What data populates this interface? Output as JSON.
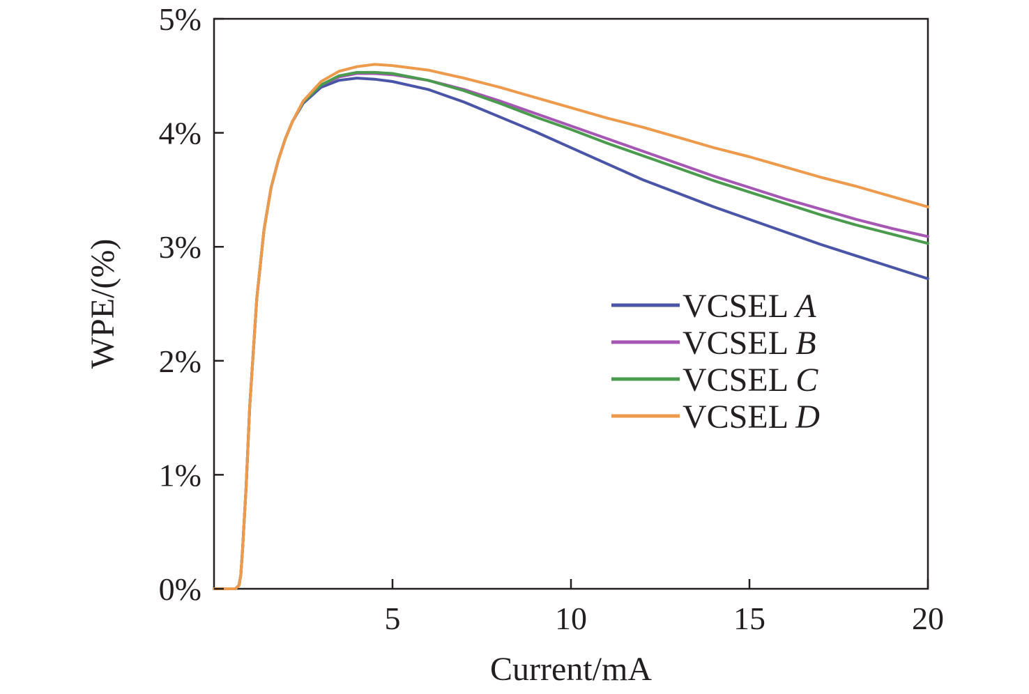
{
  "chart_data": {
    "type": "line",
    "title": "",
    "xlabel": "Current/mA",
    "ylabel": "WPE/(%)",
    "xlim": [
      0,
      20
    ],
    "ylim": [
      0,
      5
    ],
    "xticks": [
      5,
      10,
      15,
      20
    ],
    "xtick_labels": [
      "5",
      "10",
      "15",
      "20"
    ],
    "yticks": [
      0,
      1,
      2,
      3,
      4,
      5
    ],
    "ytick_labels": [
      "0%",
      "1%",
      "2%",
      "3%",
      "4%",
      "5%"
    ],
    "grid": false,
    "legend_position": "center-right",
    "series": [
      {
        "name": "VCSEL A",
        "name_prefix": "VCSEL ",
        "name_suffix": "A",
        "color": "#4a55a8",
        "x": [
          0,
          0.6,
          0.7,
          0.75,
          0.8,
          0.9,
          1.0,
          1.2,
          1.4,
          1.6,
          1.8,
          2.0,
          2.2,
          2.5,
          3.0,
          3.5,
          4.0,
          4.5,
          5.0,
          6.0,
          7.0,
          8.0,
          9.0,
          10.0,
          11.0,
          12.0,
          13.0,
          14.0,
          15.0,
          16.0,
          17.0,
          18.0,
          19.0,
          20.0
        ],
        "y": [
          0,
          0,
          0.03,
          0.12,
          0.35,
          0.9,
          1.6,
          2.55,
          3.15,
          3.52,
          3.76,
          3.95,
          4.1,
          4.26,
          4.4,
          4.46,
          4.48,
          4.47,
          4.45,
          4.38,
          4.27,
          4.14,
          4.01,
          3.87,
          3.73,
          3.59,
          3.47,
          3.35,
          3.24,
          3.13,
          3.02,
          2.92,
          2.82,
          2.72
        ]
      },
      {
        "name": "VCSEL B",
        "name_prefix": "VCSEL ",
        "name_suffix": "B",
        "color": "#a656b3",
        "x": [
          0,
          0.6,
          0.7,
          0.75,
          0.8,
          0.9,
          1.0,
          1.2,
          1.4,
          1.6,
          1.8,
          2.0,
          2.2,
          2.5,
          3.0,
          3.5,
          4.0,
          4.5,
          5.0,
          6.0,
          7.0,
          8.0,
          9.0,
          10.0,
          11.0,
          12.0,
          13.0,
          14.0,
          15.0,
          16.0,
          17.0,
          18.0,
          19.0,
          20.0
        ],
        "y": [
          0,
          0,
          0.03,
          0.12,
          0.35,
          0.9,
          1.6,
          2.55,
          3.15,
          3.52,
          3.76,
          3.95,
          4.1,
          4.27,
          4.42,
          4.49,
          4.52,
          4.52,
          4.51,
          4.46,
          4.38,
          4.28,
          4.17,
          4.06,
          3.95,
          3.84,
          3.73,
          3.62,
          3.52,
          3.42,
          3.33,
          3.24,
          3.16,
          3.09
        ]
      },
      {
        "name": "VCSEL C",
        "name_prefix": "VCSEL ",
        "name_suffix": "C",
        "color": "#4b9b4f",
        "x": [
          0,
          0.6,
          0.7,
          0.75,
          0.8,
          0.9,
          1.0,
          1.2,
          1.4,
          1.6,
          1.8,
          2.0,
          2.2,
          2.5,
          3.0,
          3.5,
          4.0,
          4.5,
          5.0,
          6.0,
          7.0,
          8.0,
          9.0,
          10.0,
          11.0,
          12.0,
          13.0,
          14.0,
          15.0,
          16.0,
          17.0,
          18.0,
          19.0,
          20.0
        ],
        "y": [
          0,
          0,
          0.03,
          0.12,
          0.35,
          0.9,
          1.6,
          2.55,
          3.15,
          3.52,
          3.76,
          3.95,
          4.1,
          4.27,
          4.42,
          4.5,
          4.53,
          4.53,
          4.52,
          4.46,
          4.37,
          4.26,
          4.14,
          4.03,
          3.91,
          3.8,
          3.69,
          3.58,
          3.48,
          3.38,
          3.28,
          3.19,
          3.11,
          3.03
        ]
      },
      {
        "name": "VCSEL D",
        "name_prefix": "VCSEL ",
        "name_suffix": "D",
        "color": "#ee9a4d",
        "x": [
          0,
          0.6,
          0.7,
          0.75,
          0.8,
          0.9,
          1.0,
          1.2,
          1.4,
          1.6,
          1.8,
          2.0,
          2.2,
          2.5,
          3.0,
          3.5,
          4.0,
          4.5,
          5.0,
          6.0,
          7.0,
          8.0,
          9.0,
          10.0,
          11.0,
          12.0,
          13.0,
          14.0,
          15.0,
          16.0,
          17.0,
          18.0,
          19.0,
          20.0
        ],
        "y": [
          0,
          0,
          0.03,
          0.12,
          0.35,
          0.9,
          1.6,
          2.55,
          3.15,
          3.52,
          3.76,
          3.95,
          4.1,
          4.28,
          4.45,
          4.54,
          4.58,
          4.6,
          4.59,
          4.55,
          4.48,
          4.4,
          4.31,
          4.22,
          4.13,
          4.05,
          3.96,
          3.87,
          3.79,
          3.7,
          3.61,
          3.53,
          3.44,
          3.35
        ]
      }
    ]
  }
}
